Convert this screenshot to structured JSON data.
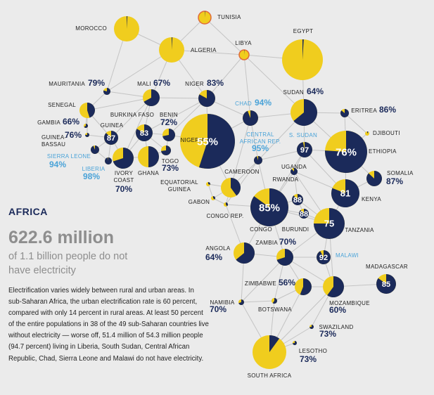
{
  "region": "AFRICA",
  "headline": "622.6 million",
  "subhead": "of 1.1 billion people do not have electricity",
  "description": "Electrification varies widely between rural and urban areas. In sub-Saharan Africa, the urban electrification rate is 60 percent, compared with only 14 percent in rural areas. At least 50 percent of the entire populations in 38 of the 49 sub-Saharan countries live without electricity — worse off, 51.4 million of 54.3 million people (94.7 percent) living in Liberia, South Sudan, Central African Republic, Chad, Sierra Leone and Malawi do not have electricity.",
  "colors": {
    "no_electricity": "#1b2a5a",
    "with_electricity": "#f0cd1e",
    "highlight": "#4aa3d8",
    "north_africa_outline": "#e06a3a",
    "links": "#c4c4c4",
    "background": "#ebebeb"
  },
  "countries": [
    {
      "id": "morocco",
      "name": "MOROCCO",
      "pct": null
    },
    {
      "id": "tunisia",
      "name": "TUNISIA",
      "pct": null
    },
    {
      "id": "algeria",
      "name": "ALGERIA",
      "pct": null
    },
    {
      "id": "libya",
      "name": "LIBYA",
      "pct": null
    },
    {
      "id": "egypt",
      "name": "EGYPT",
      "pct": null
    },
    {
      "id": "mauritania",
      "name": "MAURITANIA",
      "pct": 79
    },
    {
      "id": "mali",
      "name": "MALI",
      "pct": 67
    },
    {
      "id": "niger",
      "name": "NIGER",
      "pct": 83
    },
    {
      "id": "chad",
      "name": "CHAD",
      "pct": 94
    },
    {
      "id": "sudan",
      "name": "SUDAN",
      "pct": 64
    },
    {
      "id": "eritrea",
      "name": "ERITREA",
      "pct": 86
    },
    {
      "id": "senegal",
      "name": "SENEGAL",
      "pct": null
    },
    {
      "id": "gambia",
      "name": "GAMBIA",
      "pct": 66
    },
    {
      "id": "guinea_bissau",
      "name": "GUINEA-\nBASSAU",
      "pct": 76
    },
    {
      "id": "guinea",
      "name": "GUINEA",
      "pct": 87
    },
    {
      "id": "burkina_faso",
      "name": "BURKINA FASO",
      "pct": 83
    },
    {
      "id": "benin",
      "name": "BENIN",
      "pct": 72
    },
    {
      "id": "togo",
      "name": "TOGO",
      "pct": 73
    },
    {
      "id": "ghana",
      "name": "GHANA",
      "pct": null
    },
    {
      "id": "ivory_coast",
      "name": "IVORY\nCOAST",
      "pct": 70
    },
    {
      "id": "sierra_leone",
      "name": "SIERRA LEONE",
      "pct": 94
    },
    {
      "id": "liberia",
      "name": "LIBERIA",
      "pct": 98
    },
    {
      "id": "nigeria",
      "name": "NIGERIA",
      "pct": 55
    },
    {
      "id": "car",
      "name": "CENTRAL\nAFRICAN REP.",
      "pct": 95
    },
    {
      "id": "south_sudan",
      "name": "S. SUDAN",
      "pct": 97
    },
    {
      "id": "ethiopia",
      "name": "ETHIOPIA",
      "pct": 76
    },
    {
      "id": "djibouti",
      "name": "DJIBOUTI",
      "pct": null
    },
    {
      "id": "somalia",
      "name": "SOMALIA",
      "pct": 87
    },
    {
      "id": "cameroon",
      "name": "CAMEROON",
      "pct": null
    },
    {
      "id": "equatorial_guinea",
      "name": "EQUATORIAL\nGUINEA",
      "pct": null
    },
    {
      "id": "gabon",
      "name": "GABON",
      "pct": null
    },
    {
      "id": "congo_rep",
      "name": "CONGO REP.",
      "pct": null
    },
    {
      "id": "uganda",
      "name": "UGANDA",
      "pct": 88
    },
    {
      "id": "kenya",
      "name": "KENYA",
      "pct": 81
    },
    {
      "id": "rwanda",
      "name": "RWANDA",
      "pct": 88
    },
    {
      "id": "burundi",
      "name": "BURUNDI",
      "pct": 88
    },
    {
      "id": "congo",
      "name": "CONGO",
      "pct": 85
    },
    {
      "id": "tanzania",
      "name": "TANZANIA",
      "pct": 75
    },
    {
      "id": "angola",
      "name": "ANGOLA",
      "pct": 64
    },
    {
      "id": "zambia",
      "name": "ZAMBIA",
      "pct": 70
    },
    {
      "id": "malawi",
      "name": "MALAWI",
      "pct": 92
    },
    {
      "id": "madagascar",
      "name": "MADAGASCAR",
      "pct": 85
    },
    {
      "id": "zimbabwe",
      "name": "ZIMBABWE",
      "pct": 56
    },
    {
      "id": "mozambique",
      "name": "MOZAMBIQUE",
      "pct": 60
    },
    {
      "id": "namibia",
      "name": "NAMIBIA",
      "pct": 70
    },
    {
      "id": "botswana",
      "name": "BOTSWANA",
      "pct": null
    },
    {
      "id": "swaziland",
      "name": "SWAZILAND",
      "pct": 73
    },
    {
      "id": "lesotho",
      "name": "LESOTHO",
      "pct": 73
    },
    {
      "id": "south_africa",
      "name": "SOUTH AFRICA",
      "pct": null
    }
  ]
}
